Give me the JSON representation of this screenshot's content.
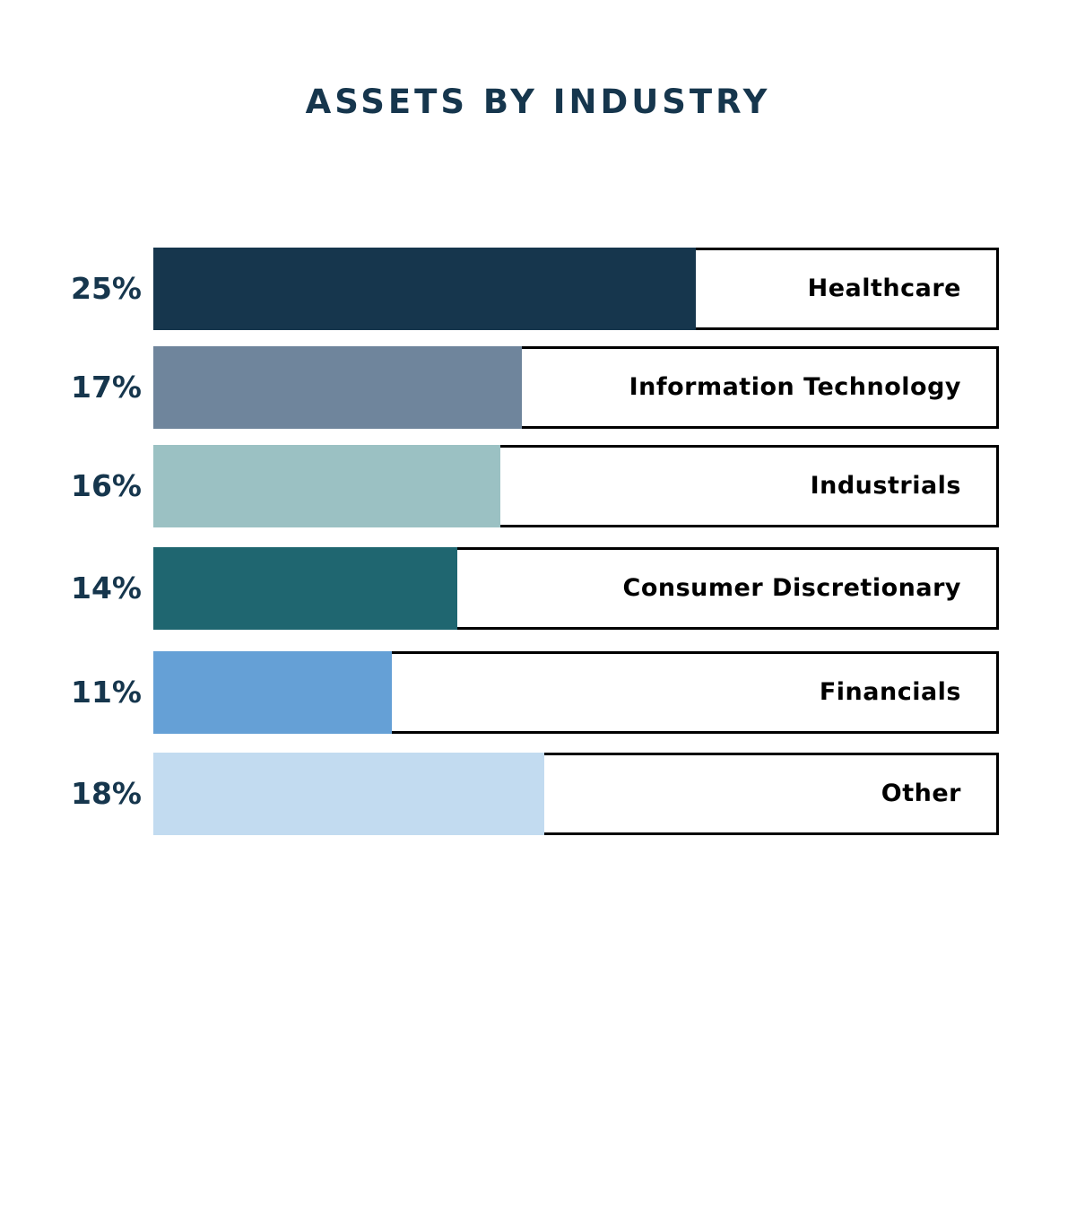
{
  "chart_data": {
    "type": "bar",
    "orientation": "horizontal",
    "title": "ASSETS BY INDUSTRY",
    "xlabel": "",
    "ylabel": "",
    "xlim": [
      0,
      40
    ],
    "grid": false,
    "categories": [
      "Healthcare",
      "Information Technology",
      "Industrials",
      "Consumer Discretionary",
      "Financials",
      "Other"
    ],
    "values": [
      25,
      17,
      16,
      14,
      11,
      18
    ],
    "value_labels": [
      "25%",
      "17%",
      "16%",
      "14%",
      "11%",
      "18%"
    ],
    "colors": [
      "#16364d",
      "#6f859c",
      "#9bc1c3",
      "#1f6670",
      "#65a0d6",
      "#c2dbf0"
    ]
  }
}
